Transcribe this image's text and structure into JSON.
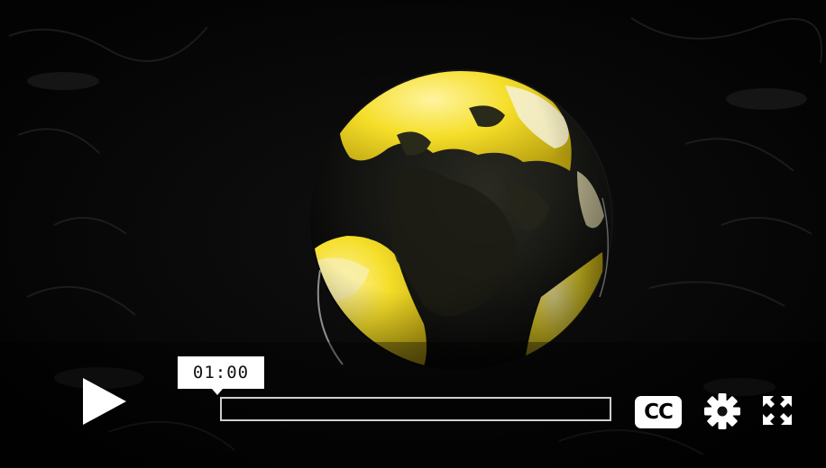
{
  "player": {
    "state": "paused",
    "tooltip_time": "01:00",
    "progress_fraction": 0.0,
    "captions_label": "CC"
  },
  "icons": {
    "play": "play-icon",
    "captions": "closed-captions-icon",
    "settings": "gear-icon",
    "fullscreen": "fullscreen-icon"
  },
  "colors": {
    "background": "#000000",
    "globe_land": "#f2dc1e",
    "globe_ocean": "#151510",
    "controls": "#ffffff"
  }
}
